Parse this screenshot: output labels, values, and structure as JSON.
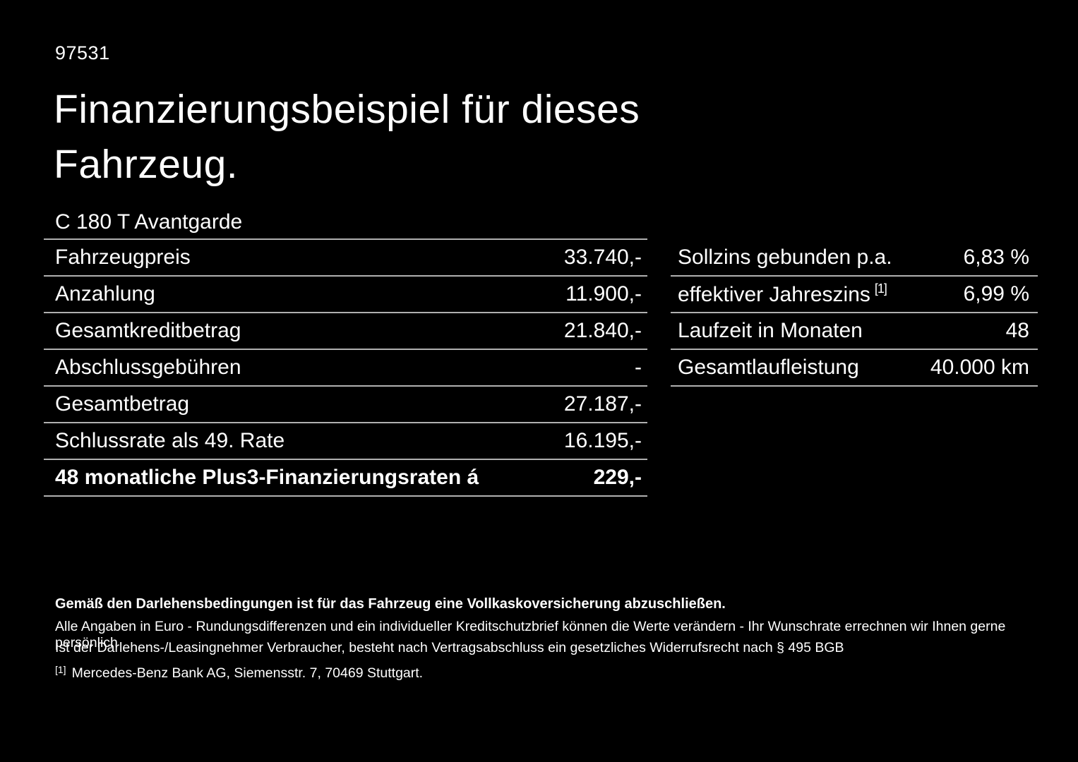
{
  "page": {
    "doc_number": "97531",
    "title_lines": [
      "Finanzierungsbeispiel für dieses",
      "Fahrzeug."
    ],
    "vehicle_model": "C 180 T Avantgarde"
  },
  "finance_table": {
    "rows": [
      {
        "label": "Fahrzeugpreis",
        "value": "33.740,-"
      },
      {
        "label": "Anzahlung",
        "value": "11.900,-"
      },
      {
        "label": "Gesamtkreditbetrag",
        "value": "21.840,-"
      },
      {
        "label": "Abschlussgebühren",
        "value": "-"
      },
      {
        "label": "Gesamtbetrag",
        "value": "27.187,-"
      },
      {
        "label": "Schlussrate als 49. Rate",
        "value": "16.195,-"
      },
      {
        "label": "48 monatliche Plus3-Finanzierungsraten á",
        "value": "229,-"
      }
    ]
  },
  "conditions_table": {
    "rows": [
      {
        "label": "Sollzins gebunden p.a.",
        "footnote_marker": "",
        "value": "6,83 %"
      },
      {
        "label": "effektiver Jahreszins",
        "footnote_marker": "[1]",
        "value": "6,99 %"
      },
      {
        "label": "Laufzeit in Monaten",
        "footnote_marker": "",
        "value": "48"
      },
      {
        "label": "Gesamtlaufleistung",
        "footnote_marker": "",
        "value": "40.000 km"
      }
    ]
  },
  "footer": {
    "insurance_note": "Gemäß den Darlehensbedingungen ist für das Fahrzeug eine Vollkaskoversicherung abzuschließen.",
    "disclaimer_line1": "Alle Angaben in Euro - Rundungsdifferenzen und ein individueller Kreditschutzbrief können die Werte verändern - Ihr Wunschrate errechnen wir Ihnen gerne persönlich",
    "disclaimer_line2": "Ist der Darlehens-/Leasingnehmer Verbraucher, besteht nach Vertragsabschluss ein gesetzliches Widerrufsrecht nach § 495 BGB",
    "footnote_marker": "[1]",
    "footnote_text": "Mercedes-Benz Bank AG, Siemensstr. 7, 70469 Stuttgart."
  },
  "colors": {
    "background": "#000000",
    "text": "#ffffff",
    "divider": "#b0b0b0"
  }
}
